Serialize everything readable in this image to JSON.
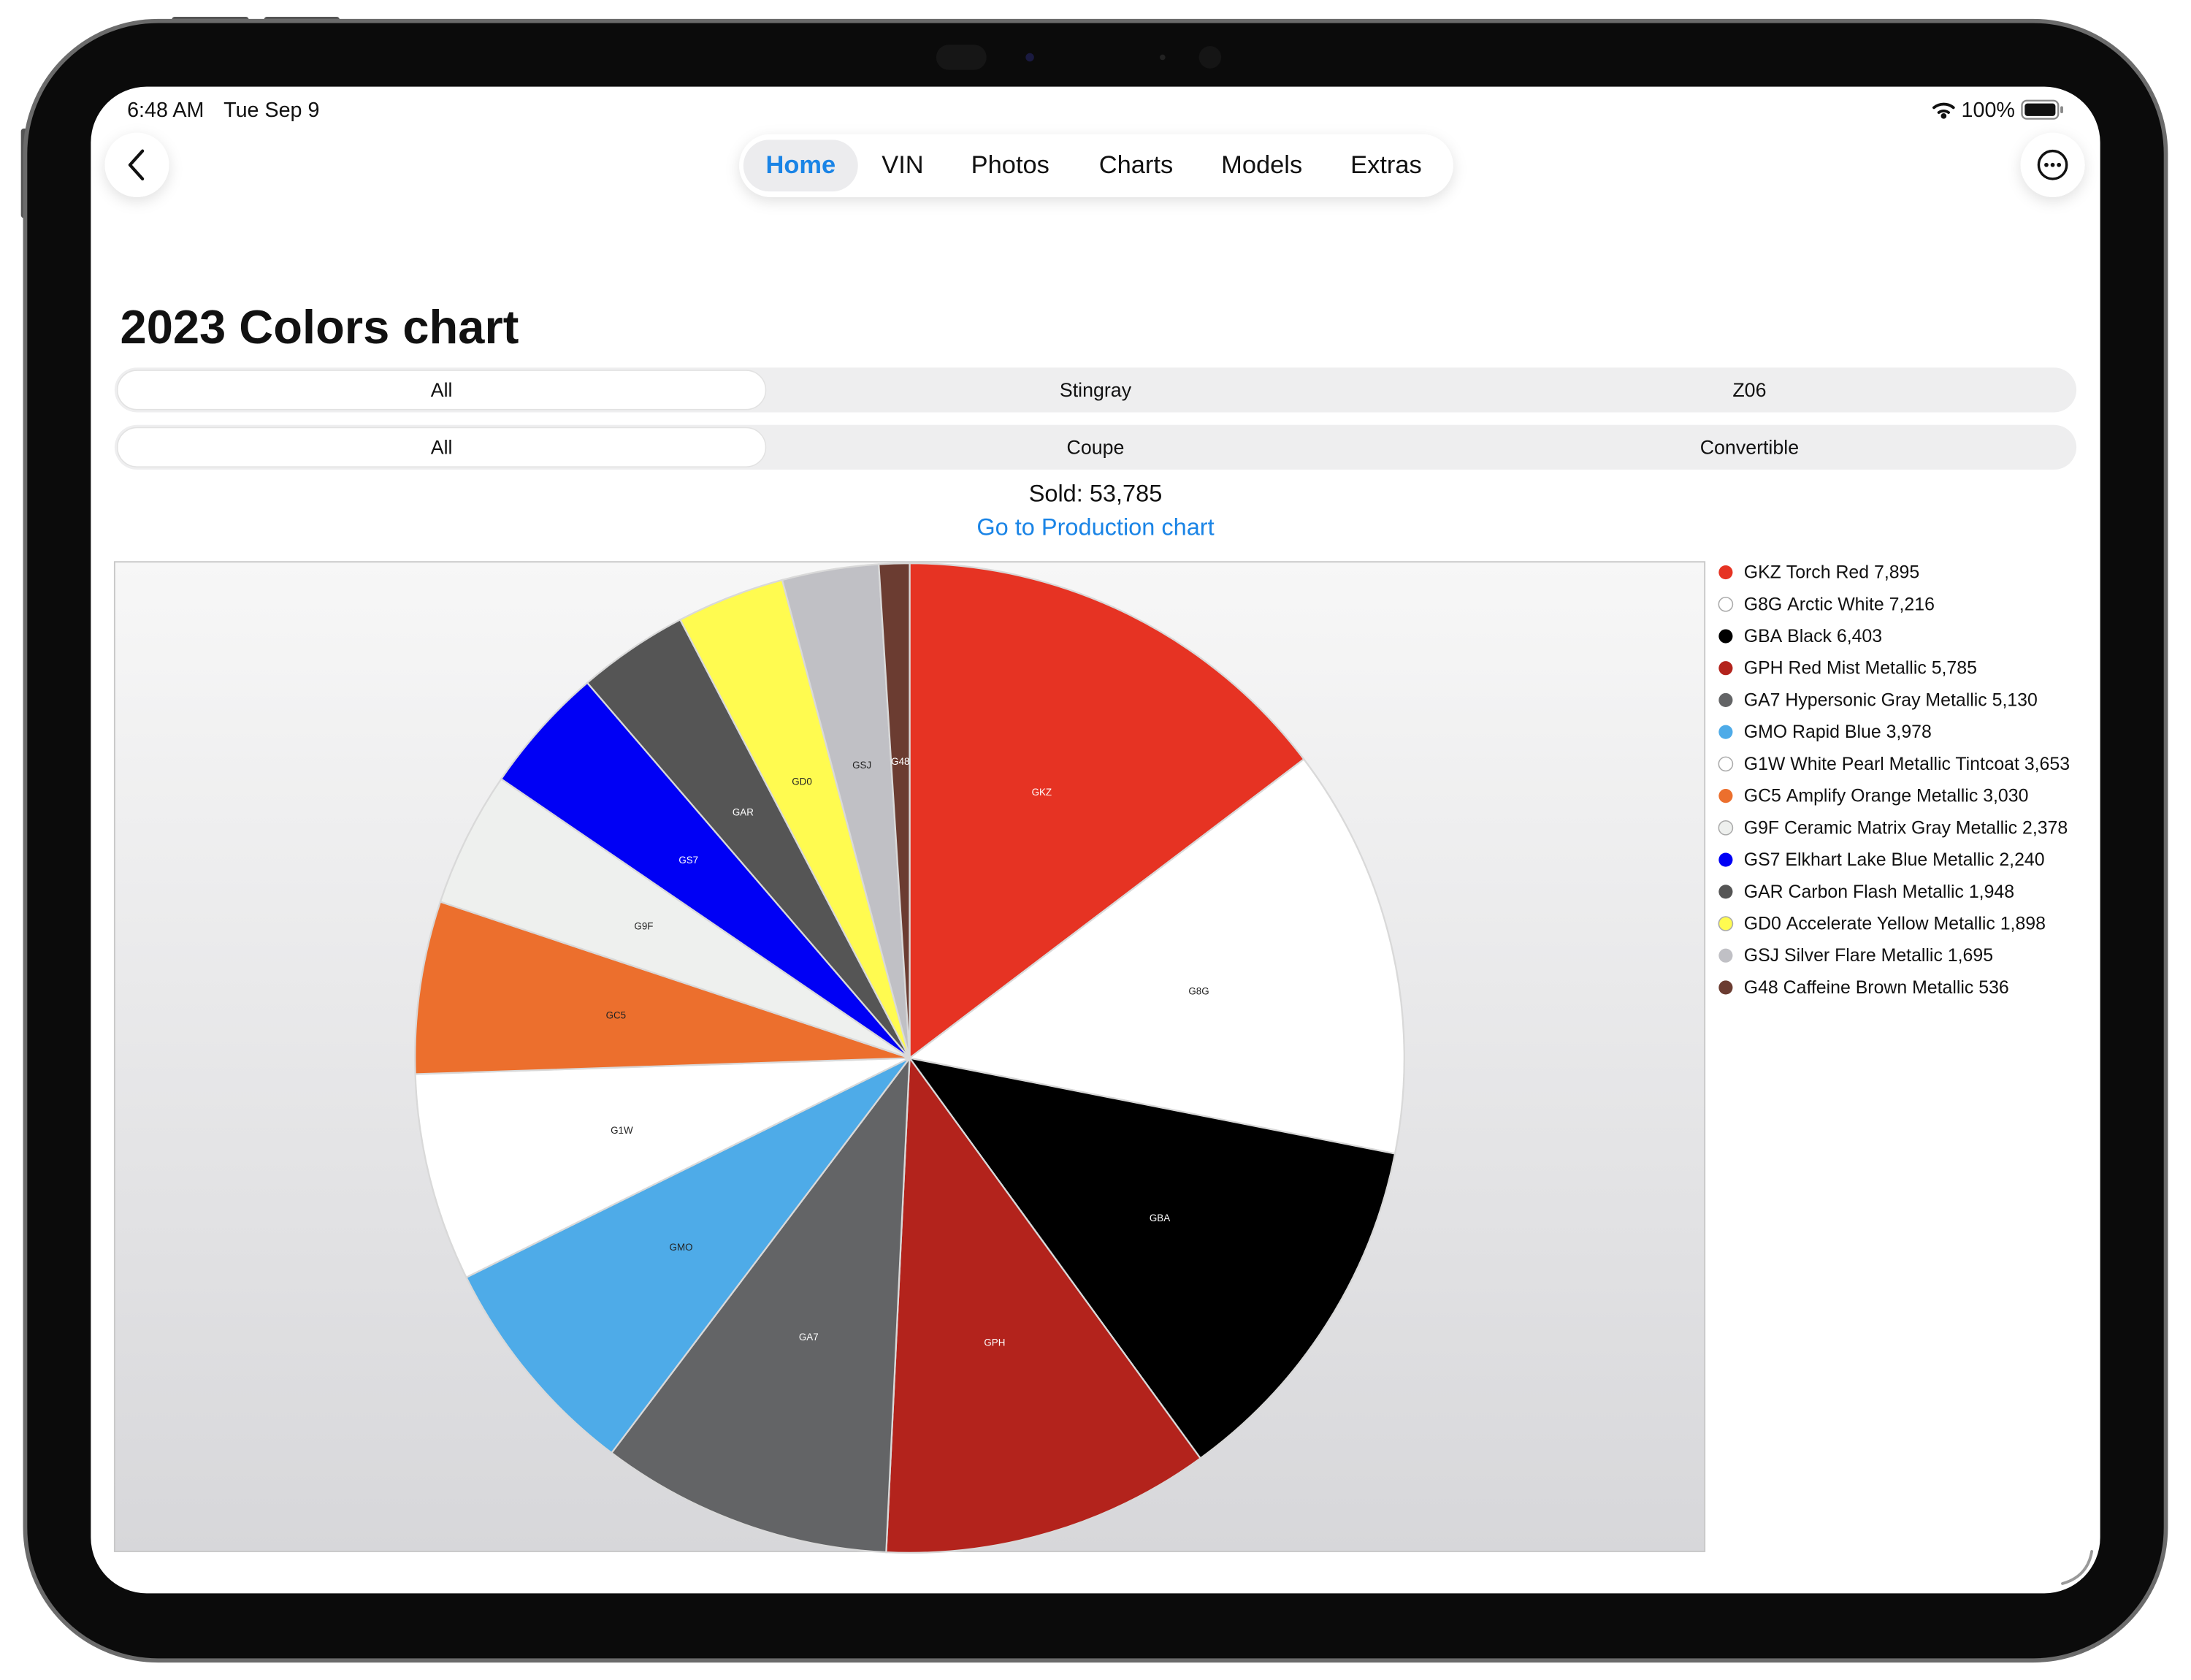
{
  "status_bar": {
    "time": "6:48 AM",
    "date": "Tue Sep 9",
    "battery": "100%"
  },
  "nav": {
    "tabs": [
      "Home",
      "VIN",
      "Photos",
      "Charts",
      "Models",
      "Extras"
    ],
    "selected_tab": 0
  },
  "title": "2023 Colors chart",
  "model_filter": {
    "options": [
      "All",
      "Stingray",
      "Z06"
    ],
    "selected": 0
  },
  "body_filter": {
    "options": [
      "All",
      "Coupe",
      "Convertible"
    ],
    "selected": 0
  },
  "sold": "Sold: 53,785",
  "link": "Go to Production chart",
  "chart_data": {
    "type": "pie",
    "categories": [
      "GKZ",
      "G8G",
      "GBA",
      "GPH",
      "GA7",
      "GMO",
      "G1W",
      "GC5",
      "G9F",
      "GS7",
      "GAR",
      "GD0",
      "GSJ",
      "G48"
    ],
    "names": [
      "Torch Red",
      "Arctic White",
      "Black",
      "Red Mist Metallic",
      "Hypersonic Gray Metallic",
      "Rapid Blue",
      "White Pearl Metallic Tintcoat",
      "Amplify Orange Metallic",
      "Ceramic Matrix Gray Metallic",
      "Elkhart Lake Blue Metallic",
      "Carbon Flash Metallic",
      "Accelerate Yellow Metallic",
      "Silver Flare Metallic",
      "Caffeine Brown Metallic"
    ],
    "values": [
      7895,
      7216,
      6403,
      5785,
      5130,
      3978,
      3653,
      3030,
      2378,
      2240,
      1948,
      1898,
      1695,
      536
    ],
    "value_labels": [
      "7,895",
      "7,216",
      "6,403",
      "5,785",
      "5,130",
      "3,978",
      "3,653",
      "3,030",
      "2,378",
      "2,240",
      "1,948",
      "1,898",
      "1,695",
      "536"
    ],
    "colors": [
      "#e63323",
      "#ffffff",
      "#000000",
      "#b3231c",
      "#636466",
      "#4eabe8",
      "#ffffff",
      "#ec6f2d",
      "#eef0ee",
      "#0000f5",
      "#555555",
      "#fffb50",
      "#c0c0c5",
      "#6b3c31"
    ]
  }
}
